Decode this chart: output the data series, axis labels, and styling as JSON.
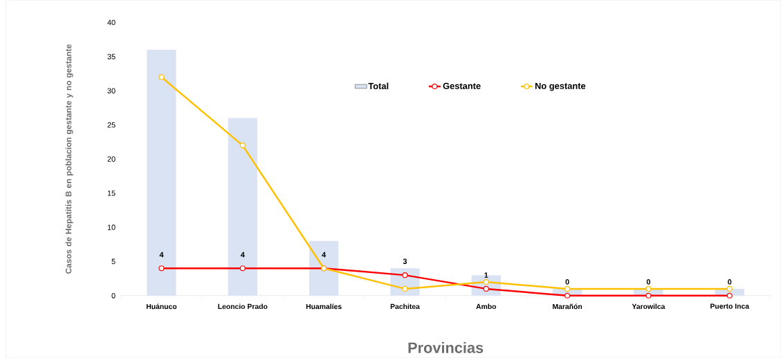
{
  "chart_data": {
    "type": "bar",
    "xlabel": "Provincias",
    "ylabel": "Casos de Hepatitis B en poblacion gestante y no gestante",
    "categories": [
      "Huánuco",
      "Leoncio Prado",
      "Huamalíes",
      "Pachitea",
      "Ambo",
      "Marañón",
      "Yarowilca",
      "Puerto Inca"
    ],
    "series": [
      {
        "name": "Total",
        "color": "#dae3f3",
        "values": [
          36,
          26,
          8,
          4,
          3,
          1,
          1,
          1
        ]
      },
      {
        "name": "Gestante",
        "type": "line",
        "color": "#ff0000",
        "values": [
          4,
          4,
          4,
          3,
          1,
          0,
          0,
          0
        ],
        "value_labels": [
          "4",
          "4",
          "4",
          "3",
          "1",
          "0",
          "0",
          "0"
        ]
      },
      {
        "name": "No gestante",
        "type": "line",
        "color": "#ffc000",
        "values": [
          32,
          22,
          4,
          1,
          2,
          1,
          1,
          1
        ]
      }
    ],
    "ylim": [
      0,
      40
    ],
    "yticks": [
      0,
      5,
      10,
      15,
      20,
      25,
      30,
      35,
      40
    ],
    "legend": "top right",
    "marker": "circle",
    "line_style": "solid"
  }
}
